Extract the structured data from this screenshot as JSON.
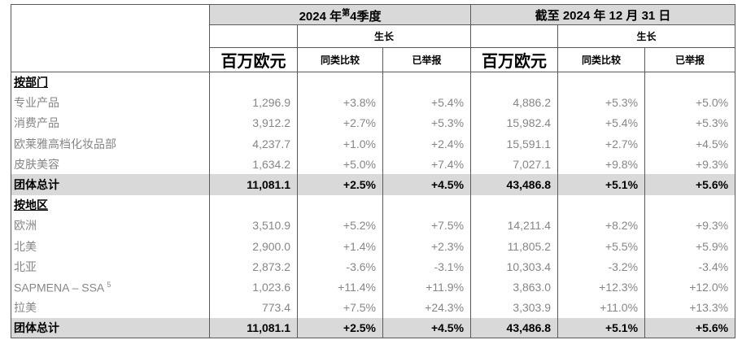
{
  "header": {
    "q4_group": {
      "prefix": "2024 年",
      "sup": "第",
      "suffix": "4季度"
    },
    "fy_group": "截至 2024 年 12 月 31 日",
    "growth_q4": "生长",
    "growth_fy": "生长",
    "unit_q4": "百万欧元",
    "unit_fy": "百万欧元",
    "lfl_q4": "同类比较",
    "rep_q4": "已举报",
    "lfl_fy": "同类比较",
    "rep_fy": "已举报"
  },
  "colors": {
    "header_bg": "#d9d9d9",
    "total_row_bg": "#d9d9d9",
    "border": "#595959",
    "body_text": "#868686",
    "strong_text": "#000000"
  },
  "rows": [
    {
      "type": "section",
      "label": "按部门"
    },
    {
      "type": "data",
      "label": "专业产品",
      "v": [
        "1,296.9",
        "+3.8%",
        "+5.4%",
        "4,886.2",
        "+5.3%",
        "+5.0%"
      ]
    },
    {
      "type": "data",
      "label": "消费产品",
      "v": [
        "3,912.2",
        "+2.7%",
        "+5.3%",
        "15,982.4",
        "+5.4%",
        "+5.3%"
      ]
    },
    {
      "type": "data",
      "label": "欧莱雅高档化妆品部",
      "v": [
        "4,237.7",
        "+1.0%",
        "+2.4%",
        "15,591.1",
        "+2.7%",
        "+4.5%"
      ]
    },
    {
      "type": "data",
      "label": "皮肤美容",
      "v": [
        "1,634.2",
        "+5.0%",
        "+7.4%",
        "7,027.1",
        "+9.8%",
        "+9.3%"
      ]
    },
    {
      "type": "total",
      "label": "团体总计",
      "v": [
        "11,081.1",
        "+2.5%",
        "+4.5%",
        "43,486.8",
        "+5.1%",
        "+5.6%"
      ]
    },
    {
      "type": "section",
      "label": "按地区"
    },
    {
      "type": "data",
      "label": "欧洲",
      "v": [
        "3,510.9",
        "+5.2%",
        "+7.5%",
        "14,211.4",
        "+8.2%",
        "+9.3%"
      ]
    },
    {
      "type": "data",
      "label": "北美",
      "v": [
        "2,900.0",
        "+1.4%",
        "+2.3%",
        "11,805.2",
        "+5.5%",
        "+5.9%"
      ]
    },
    {
      "type": "data",
      "label": "北亚",
      "v": [
        "2,873.2",
        "-3.6%",
        "-3.1%",
        "10,303.4",
        "-3.2%",
        "-3.4%"
      ]
    },
    {
      "type": "data",
      "label": "SAPMENA – SSA ",
      "label_sup": "5",
      "v": [
        "1,023.6",
        "+11.4%",
        "+11.9%",
        "3,863.0",
        "+12.3%",
        "+12.0%"
      ]
    },
    {
      "type": "data",
      "label": "拉美",
      "v": [
        "773.4",
        "+7.5%",
        "+24.3%",
        "3,303.9",
        "+11.0%",
        "+13.3%"
      ]
    },
    {
      "type": "total",
      "label": "团体总计",
      "v": [
        "11,081.1",
        "+2.5%",
        "+4.5%",
        "43,486.8",
        "+5.1%",
        "+5.6%"
      ]
    }
  ]
}
